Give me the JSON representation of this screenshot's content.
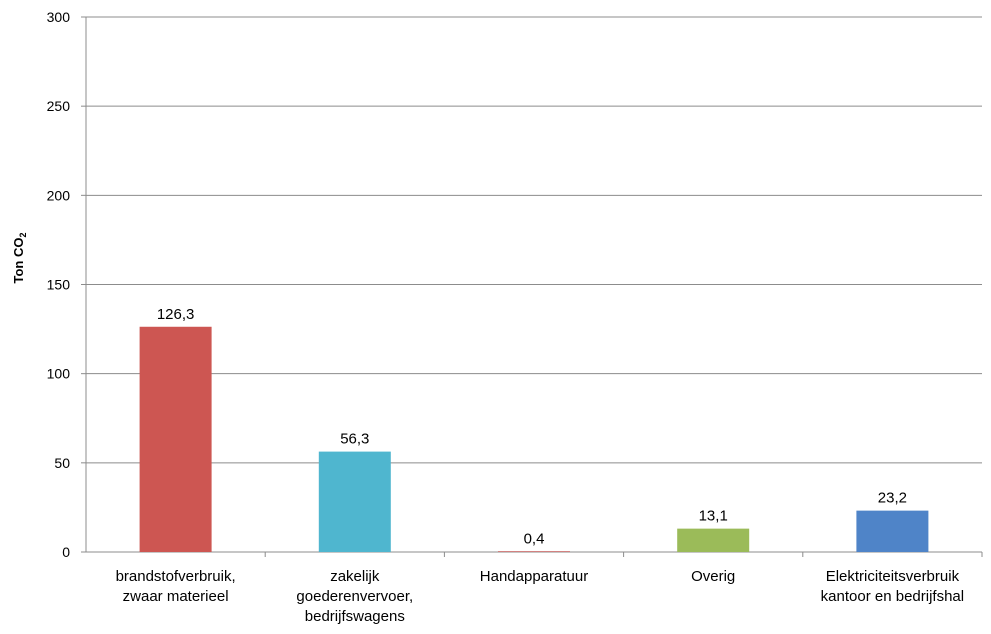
{
  "chart_data": {
    "type": "bar",
    "ylabel": "Ton CO",
    "ylabel_subscript": "2",
    "ylim": [
      0,
      300
    ],
    "yticks": [
      "0",
      "50",
      "100",
      "150",
      "200",
      "250",
      "300"
    ],
    "grid": true,
    "categories": [
      [
        "brandstofverbruik,",
        "zwaar materieel"
      ],
      [
        "zakelijk",
        "goederenvervoer,",
        "bedrijfswagens"
      ],
      [
        "Handapparatuur"
      ],
      [
        "Overig"
      ],
      [
        "Elektriciteitsverbruik",
        "kantoor en bedrijfshal"
      ]
    ],
    "values": [
      126.3,
      56.3,
      0.4,
      13.1,
      23.2
    ],
    "data_labels": [
      "126,3",
      "56,3",
      "0,4",
      "13,1",
      "23,2"
    ],
    "colors": [
      "#cd5652",
      "#4fb6cf",
      "#c0504d",
      "#9bbb59",
      "#4f84c8"
    ]
  }
}
